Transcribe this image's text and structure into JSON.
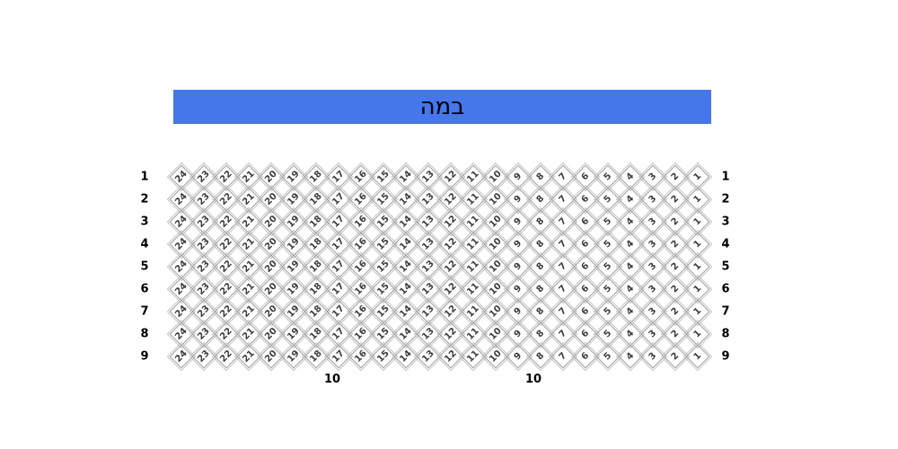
{
  "stage": {
    "label": "במה",
    "color": "#4577EA",
    "text_color": "#000000"
  },
  "seat_map": {
    "row_labels": [
      "1",
      "2",
      "3",
      "4",
      "5",
      "6",
      "7",
      "8",
      "9"
    ],
    "seat_numbers": [
      "24",
      "23",
      "22",
      "21",
      "20",
      "19",
      "18",
      "17",
      "16",
      "15",
      "14",
      "13",
      "12",
      "11",
      "10",
      "9",
      "8",
      "7",
      "6",
      "5",
      "4",
      "3",
      "2",
      "1"
    ],
    "bottom_row_labels": [
      "10",
      "10"
    ],
    "seat_border_color": "#9a9a9a",
    "seat_number_color": "#3d3d3d",
    "row_label_color": "#000000"
  }
}
